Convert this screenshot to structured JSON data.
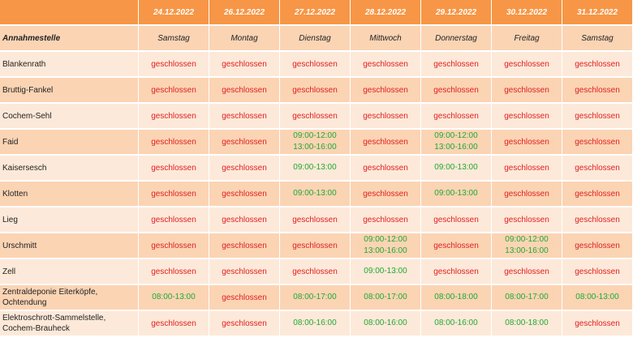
{
  "header": {
    "corner": "",
    "dates": [
      "24.12.2022",
      "26.12.2022",
      "27.12.2022",
      "28.12.2022",
      "29.12.2022",
      "30.12.2022",
      "31.12.2022"
    ],
    "location_label": "Annahmestelle",
    "weekdays": [
      "Samstag",
      "Montag",
      "Dienstag",
      "Mittwoch",
      "Donnerstag",
      "Freitag",
      "Samstag"
    ]
  },
  "closed_text": "geschlossen",
  "colors": {
    "header_bg": "#f79646",
    "row_light": "#fde9d9",
    "row_dark": "#fbd4b4",
    "closed": "#e02020",
    "open": "#22a832"
  },
  "rows": [
    {
      "name": "Blankenrath",
      "cells": [
        null,
        null,
        null,
        null,
        null,
        null,
        null
      ]
    },
    {
      "name": "Bruttig-Fankel",
      "cells": [
        null,
        null,
        null,
        null,
        null,
        null,
        null
      ]
    },
    {
      "name": "Cochem-Sehl",
      "cells": [
        null,
        null,
        null,
        null,
        null,
        null,
        null
      ]
    },
    {
      "name": "Faid",
      "cells": [
        null,
        null,
        [
          "09:00-12:00",
          "13:00-16:00"
        ],
        null,
        [
          "09:00-12:00",
          "13:00-16:00"
        ],
        null,
        null
      ]
    },
    {
      "name": "Kaisersesch",
      "cells": [
        null,
        null,
        [
          "09:00-13:00"
        ],
        null,
        [
          "09:00-13:00"
        ],
        null,
        null
      ]
    },
    {
      "name": "Klotten",
      "cells": [
        null,
        null,
        [
          "09:00-13:00"
        ],
        null,
        [
          "09:00-13:00"
        ],
        null,
        null
      ]
    },
    {
      "name": "Lieg",
      "cells": [
        null,
        null,
        null,
        null,
        null,
        null,
        null
      ]
    },
    {
      "name": "Urschmitt",
      "cells": [
        null,
        null,
        null,
        [
          "09:00-12:00",
          "13:00-16:00"
        ],
        null,
        [
          "09:00-12:00",
          "13:00-16:00"
        ],
        null
      ]
    },
    {
      "name": "Zell",
      "cells": [
        null,
        null,
        null,
        [
          "09:00-13:00"
        ],
        null,
        null,
        null
      ]
    },
    {
      "name": "Zentraldeponie Eiterköpfe, Ochtendung",
      "cells": [
        [
          "08:00-13:00"
        ],
        null,
        [
          "08:00-17:00"
        ],
        [
          "08:00-17:00"
        ],
        [
          "08:00-18:00"
        ],
        [
          "08:00-17:00"
        ],
        [
          "08:00-13:00"
        ]
      ]
    },
    {
      "name": "Elektroschrott-Sammelstelle, Cochem-Brauheck",
      "cells": [
        null,
        null,
        [
          "08:00-16:00"
        ],
        [
          "08:00-16:00"
        ],
        [
          "08:00-16:00"
        ],
        [
          "08:00-18:00"
        ],
        null
      ]
    }
  ]
}
